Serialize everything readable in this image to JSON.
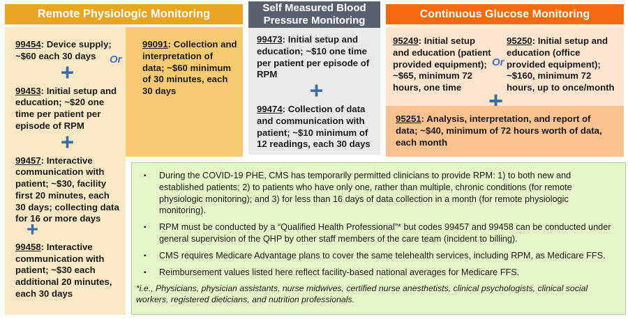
{
  "icons": {
    "plus": "+",
    "bullet": "▪"
  },
  "colors": {
    "rpm_header": "#E9A424",
    "smbp_header": "#5A606D",
    "cgm_header": "#F5690F",
    "col1_bg": "#FAE8C4",
    "col2_bg": "#F8CB72",
    "smbp_bg": "#E9E9E9",
    "cgm_top_bg": "#FCE4CF",
    "cgm_bottom_bg": "#F8C291",
    "notes_bg": "#E4F6C7",
    "or_blue": "#4472C4",
    "plus_blue": "#3A6CA8"
  },
  "rpm": {
    "title": "Remote Physiologic Monitoring",
    "or_label": "Or",
    "codes": [
      {
        "code": "99454",
        "desc": ": Device supply; ~$60 each 30 days"
      },
      {
        "code": "99453",
        "desc": ": Initial setup and education; ~$20 one time per patient per episode of RPM"
      },
      {
        "code": "99457",
        "desc": ": Interactive communication with patient; ~$30, facility first 20 minutes, each 30 days; collecting data for 16 or more days"
      },
      {
        "code": "99458",
        "desc": ": Interactive communication with patient; ~$30 each additional 20 minutes, each 30 days"
      }
    ],
    "alt_code": {
      "code": "99091",
      "desc": ": Collection and interpretation of data; ~$60 minimum of 30 minutes, each 30 days"
    }
  },
  "smbp": {
    "title": "Self Measured Blood Pressure Monitoring",
    "codes": [
      {
        "code": "99473",
        "desc": ": Initial setup and education; ~$10 one time per patient per episode of RPM"
      },
      {
        "code": "99474",
        "desc": ": Collection of data and communication with patient; ~$10 minimum of 12 readings, each 30 days"
      }
    ]
  },
  "cgm": {
    "title": "Continuous Glucose Monitoring",
    "or_label": "Or",
    "option_a": {
      "code": "95249",
      "desc": ": Initial setup and education (patient provided equipment); ~$65, minimum 72 hours, one time"
    },
    "option_b": {
      "code": "95250",
      "desc": ": Initial setup and education (office provided equipment); ~$160, minimum 72 hours, up to once/month"
    },
    "analysis": {
      "code": "95251",
      "desc": ": Analysis, interpretation, and report of data; ~$40, minimum of 72 hours worth of data, each month"
    }
  },
  "notes": {
    "bullets": [
      "During the COVID-19 PHE, CMS has temporarily permitted clinicians to provide RPM: 1) to both new and established patients; 2) to patients who have only one, rather than multiple, chronic conditions (for remote physiologic monitoring); and 3) for less than 16 days of data collection in a month (for remote physiologic monitoring).",
      "RPM must be conducted by a “Qualified Health Professional”* but codes 99457 and 99458 can be conducted under general supervision of the QHP by other staff members of the care team (incident to billing).",
      "CMS requires Medicare Advantage plans to cover the same telehealth services, including RPM, as Medicare FFS.",
      "Reimbursement values listed here reflect facility-based national averages for Medicare FFS."
    ],
    "footnote": "*i.e., Physicians, physician assistants, nurse midwives, certified nurse anesthetists, clinical psychologists, clinical social workers, registered dieticians, and nutrition professionals."
  }
}
